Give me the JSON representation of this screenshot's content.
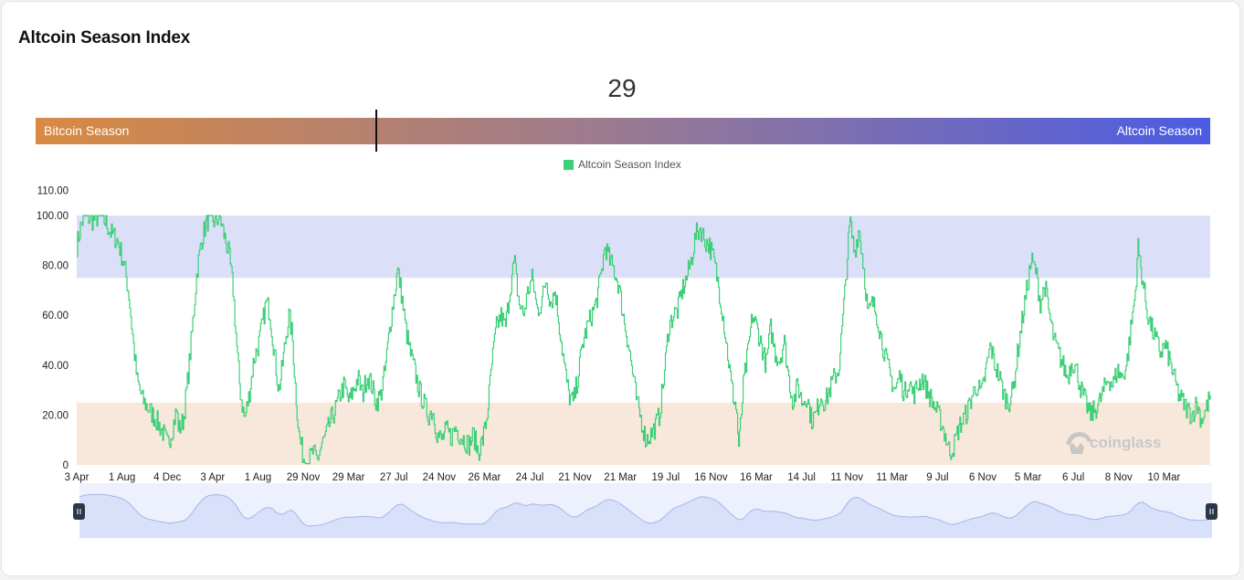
{
  "title": "Altcoin Season Index",
  "gauge": {
    "value": "29",
    "value_num": 29,
    "left_label": "Bitcoin Season",
    "right_label": "Altcoin Season"
  },
  "legend_label": "Altcoin Season Index",
  "watermark": "coinglass",
  "colors": {
    "line": "#3ecf78",
    "altcoin_zone": "#dcdff8",
    "bitcoin_zone": "#f8e8dc",
    "navigator_fill": "#d9e0fa",
    "navigator_line": "#a8b4e8"
  },
  "chart_data": {
    "type": "line",
    "series": [
      {
        "name": "Altcoin Season Index"
      }
    ],
    "ylim": [
      0,
      110
    ],
    "yticks": [
      "0",
      "20.00",
      "40.00",
      "60.00",
      "80.00",
      "100.00",
      "110.00"
    ],
    "ytick_values": [
      0,
      20,
      40,
      60,
      80,
      100,
      110
    ],
    "xticks": [
      "3 Apr",
      "1 Aug",
      "4 Dec",
      "3 Apr",
      "1 Aug",
      "29 Nov",
      "29 Mar",
      "27 Jul",
      "24 Nov",
      "26 Mar",
      "24 Jul",
      "21 Nov",
      "21 Mar",
      "19 Jul",
      "16 Nov",
      "16 Mar",
      "14 Jul",
      "11 Nov",
      "11 Mar",
      "9 Jul",
      "6 Nov",
      "5 Mar",
      "6 Jul",
      "8 Nov",
      "10 Mar"
    ],
    "bands": [
      {
        "name": "altcoin-season-zone",
        "from": 75,
        "to": 100
      },
      {
        "name": "bitcoin-season-zone",
        "from": 0,
        "to": 25
      }
    ],
    "anchors": [
      [
        0,
        88
      ],
      [
        0.004,
        97
      ],
      [
        0.008,
        100
      ],
      [
        0.014,
        98
      ],
      [
        0.02,
        100
      ],
      [
        0.026,
        97
      ],
      [
        0.03,
        93
      ],
      [
        0.036,
        90
      ],
      [
        0.042,
        80
      ],
      [
        0.046,
        68
      ],
      [
        0.05,
        48
      ],
      [
        0.053,
        34
      ],
      [
        0.058,
        26
      ],
      [
        0.064,
        22
      ],
      [
        0.07,
        18
      ],
      [
        0.076,
        13
      ],
      [
        0.08,
        8
      ],
      [
        0.084,
        14
      ],
      [
        0.088,
        22
      ],
      [
        0.09,
        14
      ],
      [
        0.094,
        18
      ],
      [
        0.098,
        35
      ],
      [
        0.102,
        55
      ],
      [
        0.106,
        78
      ],
      [
        0.11,
        90
      ],
      [
        0.114,
        97
      ],
      [
        0.118,
        100
      ],
      [
        0.122,
        97
      ],
      [
        0.126,
        100
      ],
      [
        0.13,
        92
      ],
      [
        0.134,
        85
      ],
      [
        0.138,
        70
      ],
      [
        0.141,
        48
      ],
      [
        0.144,
        30
      ],
      [
        0.148,
        18
      ],
      [
        0.152,
        28
      ],
      [
        0.156,
        42
      ],
      [
        0.16,
        48
      ],
      [
        0.163,
        55
      ],
      [
        0.167,
        65
      ],
      [
        0.17,
        62
      ],
      [
        0.173,
        50
      ],
      [
        0.176,
        38
      ],
      [
        0.178,
        30
      ],
      [
        0.18,
        35
      ],
      [
        0.184,
        50
      ],
      [
        0.187,
        60
      ],
      [
        0.19,
        52
      ],
      [
        0.193,
        30
      ],
      [
        0.196,
        12
      ],
      [
        0.2,
        3
      ],
      [
        0.204,
        1
      ],
      [
        0.208,
        5
      ],
      [
        0.212,
        2
      ],
      [
        0.216,
        8
      ],
      [
        0.22,
        12
      ],
      [
        0.224,
        18
      ],
      [
        0.228,
        22
      ],
      [
        0.232,
        28
      ],
      [
        0.236,
        32
      ],
      [
        0.24,
        25
      ],
      [
        0.244,
        30
      ],
      [
        0.248,
        35
      ],
      [
        0.252,
        28
      ],
      [
        0.256,
        36
      ],
      [
        0.26,
        32
      ],
      [
        0.264,
        25
      ],
      [
        0.268,
        28
      ],
      [
        0.272,
        38
      ],
      [
        0.276,
        55
      ],
      [
        0.28,
        68
      ],
      [
        0.283,
        78
      ],
      [
        0.286,
        70
      ],
      [
        0.29,
        55
      ],
      [
        0.294,
        45
      ],
      [
        0.298,
        38
      ],
      [
        0.302,
        30
      ],
      [
        0.306,
        25
      ],
      [
        0.31,
        20
      ],
      [
        0.314,
        22
      ],
      [
        0.318,
        12
      ],
      [
        0.322,
        10
      ],
      [
        0.326,
        14
      ],
      [
        0.33,
        11
      ],
      [
        0.334,
        15
      ],
      [
        0.338,
        12
      ],
      [
        0.342,
        10
      ],
      [
        0.346,
        8
      ],
      [
        0.35,
        12
      ],
      [
        0.354,
        5
      ],
      [
        0.358,
        10
      ],
      [
        0.362,
        20
      ],
      [
        0.366,
        40
      ],
      [
        0.37,
        55
      ],
      [
        0.374,
        60
      ],
      [
        0.378,
        55
      ],
      [
        0.382,
        70
      ],
      [
        0.386,
        82
      ],
      [
        0.39,
        65
      ],
      [
        0.394,
        60
      ],
      [
        0.398,
        70
      ],
      [
        0.402,
        75
      ],
      [
        0.406,
        62
      ],
      [
        0.41,
        65
      ],
      [
        0.414,
        75
      ],
      [
        0.418,
        65
      ],
      [
        0.422,
        70
      ],
      [
        0.426,
        55
      ],
      [
        0.43,
        40
      ],
      [
        0.434,
        28
      ],
      [
        0.438,
        25
      ],
      [
        0.442,
        35
      ],
      [
        0.446,
        48
      ],
      [
        0.45,
        55
      ],
      [
        0.454,
        60
      ],
      [
        0.458,
        65
      ],
      [
        0.462,
        75
      ],
      [
        0.466,
        88
      ],
      [
        0.47,
        82
      ],
      [
        0.474,
        78
      ],
      [
        0.478,
        72
      ],
      [
        0.482,
        60
      ],
      [
        0.486,
        50
      ],
      [
        0.49,
        38
      ],
      [
        0.494,
        25
      ],
      [
        0.498,
        18
      ],
      [
        0.502,
        10
      ],
      [
        0.506,
        12
      ],
      [
        0.51,
        15
      ],
      [
        0.514,
        20
      ],
      [
        0.518,
        35
      ],
      [
        0.522,
        55
      ],
      [
        0.526,
        60
      ],
      [
        0.53,
        62
      ],
      [
        0.534,
        70
      ],
      [
        0.538,
        75
      ],
      [
        0.542,
        82
      ],
      [
        0.546,
        92
      ],
      [
        0.55,
        95
      ],
      [
        0.554,
        90
      ],
      [
        0.558,
        88
      ],
      [
        0.562,
        82
      ],
      [
        0.566,
        72
      ],
      [
        0.57,
        60
      ],
      [
        0.574,
        45
      ],
      [
        0.578,
        30
      ],
      [
        0.582,
        22
      ],
      [
        0.584,
        6
      ],
      [
        0.588,
        32
      ],
      [
        0.592,
        45
      ],
      [
        0.596,
        60
      ],
      [
        0.6,
        55
      ],
      [
        0.604,
        48
      ],
      [
        0.608,
        40
      ],
      [
        0.612,
        55
      ],
      [
        0.616,
        45
      ],
      [
        0.62,
        42
      ],
      [
        0.624,
        50
      ],
      [
        0.628,
        35
      ],
      [
        0.632,
        25
      ],
      [
        0.636,
        32
      ],
      [
        0.64,
        25
      ],
      [
        0.644,
        28
      ],
      [
        0.648,
        18
      ],
      [
        0.652,
        20
      ],
      [
        0.656,
        28
      ],
      [
        0.66,
        25
      ],
      [
        0.664,
        30
      ],
      [
        0.668,
        35
      ],
      [
        0.672,
        38
      ],
      [
        0.676,
        60
      ],
      [
        0.68,
        85
      ],
      [
        0.682,
        98
      ],
      [
        0.686,
        85
      ],
      [
        0.69,
        95
      ],
      [
        0.694,
        80
      ],
      [
        0.698,
        60
      ],
      [
        0.702,
        65
      ],
      [
        0.706,
        60
      ],
      [
        0.71,
        50
      ],
      [
        0.714,
        42
      ],
      [
        0.718,
        35
      ],
      [
        0.722,
        30
      ],
      [
        0.726,
        36
      ],
      [
        0.73,
        28
      ],
      [
        0.734,
        34
      ],
      [
        0.738,
        28
      ],
      [
        0.742,
        32
      ],
      [
        0.746,
        35
      ],
      [
        0.75,
        30
      ],
      [
        0.754,
        26
      ],
      [
        0.758,
        22
      ],
      [
        0.762,
        18
      ],
      [
        0.766,
        12
      ],
      [
        0.77,
        5
      ],
      [
        0.774,
        8
      ],
      [
        0.778,
        15
      ],
      [
        0.782,
        18
      ],
      [
        0.786,
        22
      ],
      [
        0.79,
        28
      ],
      [
        0.794,
        32
      ],
      [
        0.798,
        28
      ],
      [
        0.802,
        38
      ],
      [
        0.806,
        48
      ],
      [
        0.81,
        40
      ],
      [
        0.814,
        35
      ],
      [
        0.818,
        28
      ],
      [
        0.822,
        25
      ],
      [
        0.826,
        30
      ],
      [
        0.83,
        45
      ],
      [
        0.834,
        58
      ],
      [
        0.838,
        70
      ],
      [
        0.842,
        82
      ],
      [
        0.846,
        78
      ],
      [
        0.85,
        65
      ],
      [
        0.854,
        72
      ],
      [
        0.858,
        60
      ],
      [
        0.862,
        50
      ],
      [
        0.866,
        45
      ],
      [
        0.87,
        40
      ],
      [
        0.874,
        35
      ],
      [
        0.878,
        42
      ],
      [
        0.882,
        38
      ],
      [
        0.886,
        30
      ],
      [
        0.89,
        25
      ],
      [
        0.894,
        20
      ],
      [
        0.898,
        22
      ],
      [
        0.902,
        25
      ],
      [
        0.906,
        30
      ],
      [
        0.91,
        35
      ],
      [
        0.914,
        32
      ],
      [
        0.918,
        38
      ],
      [
        0.922,
        35
      ],
      [
        0.926,
        40
      ],
      [
        0.93,
        55
      ],
      [
        0.934,
        70
      ],
      [
        0.936,
        88
      ],
      [
        0.94,
        75
      ],
      [
        0.944,
        62
      ],
      [
        0.948,
        55
      ],
      [
        0.952,
        50
      ],
      [
        0.956,
        45
      ],
      [
        0.96,
        48
      ],
      [
        0.964,
        42
      ],
      [
        0.968,
        35
      ],
      [
        0.972,
        28
      ],
      [
        0.976,
        25
      ],
      [
        0.98,
        22
      ],
      [
        0.984,
        20
      ],
      [
        0.988,
        25
      ],
      [
        0.992,
        18
      ],
      [
        0.996,
        22
      ],
      [
        1.0,
        28
      ]
    ]
  }
}
